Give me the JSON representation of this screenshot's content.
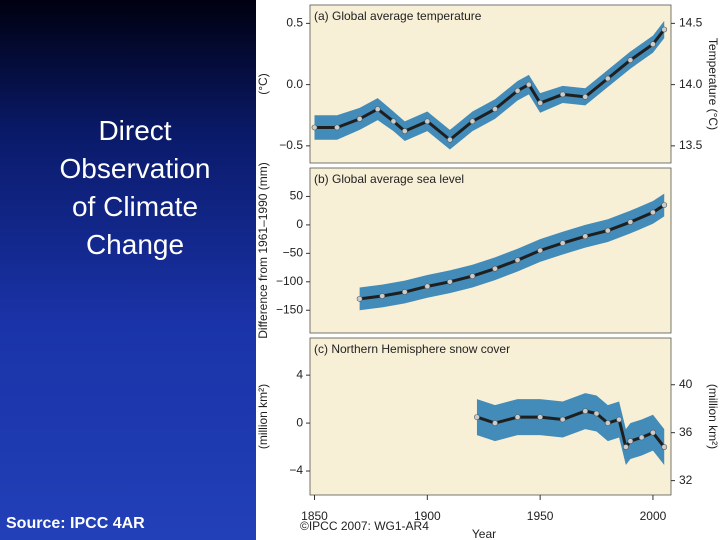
{
  "slide": {
    "title": "Direct Observation of Climate Change",
    "source": "Source: IPCC 4AR",
    "copyright": "©IPCC 2007: WG1-AR4"
  },
  "chart_data": [
    {
      "type": "line",
      "title": "(a) Global average temperature",
      "ylabel": "(°C)",
      "y2label": "Temperature (°C)",
      "x": [
        1850,
        1860,
        1870,
        1878,
        1885,
        1890,
        1900,
        1910,
        1920,
        1930,
        1940,
        1945,
        1950,
        1960,
        1970,
        1980,
        1990,
        2000,
        2005
      ],
      "values": [
        -0.35,
        -0.35,
        -0.28,
        -0.2,
        -0.3,
        -0.38,
        -0.3,
        -0.45,
        -0.3,
        -0.2,
        -0.05,
        0.0,
        -0.15,
        -0.08,
        -0.1,
        0.05,
        0.2,
        0.33,
        0.45
      ],
      "lower": [
        -0.45,
        -0.45,
        -0.37,
        -0.29,
        -0.38,
        -0.46,
        -0.38,
        -0.53,
        -0.38,
        -0.28,
        -0.13,
        -0.08,
        -0.23,
        -0.15,
        -0.17,
        -0.02,
        0.13,
        0.26,
        0.38
      ],
      "upper": [
        -0.25,
        -0.25,
        -0.19,
        -0.11,
        -0.22,
        -0.3,
        -0.22,
        -0.37,
        -0.22,
        -0.12,
        0.03,
        0.08,
        -0.07,
        -0.01,
        -0.03,
        0.12,
        0.27,
        0.4,
        0.52
      ],
      "color": "#1f1f1f",
      "band_color": "#2f7fb5",
      "xlim": [
        1848,
        2008
      ],
      "ylim": [
        -0.64,
        0.65
      ],
      "yticks": [
        {
          "value": 0.5,
          "label": "0.5"
        },
        {
          "value": 0,
          "label": "0.0"
        },
        {
          "value": -0.5,
          "label": "−0.5"
        }
      ],
      "y2lim": [
        13.36,
        14.65
      ],
      "y2ticks": [
        {
          "value": 14.5,
          "label": "14.5"
        },
        {
          "value": 14,
          "label": "14.0"
        },
        {
          "value": 13.5,
          "label": "13.5"
        }
      ]
    },
    {
      "type": "line",
      "title": "(b) Global average sea level",
      "ylabel": "Difference from 1961–1990 (mm)",
      "x": [
        1870,
        1880,
        1890,
        1900,
        1910,
        1920,
        1930,
        1940,
        1950,
        1960,
        1970,
        1980,
        1990,
        2000,
        2005
      ],
      "values": [
        -130,
        -125,
        -118,
        -108,
        -100,
        -90,
        -77,
        -62,
        -45,
        -32,
        -20,
        -10,
        5,
        22,
        35
      ],
      "lower": [
        -150,
        -145,
        -138,
        -128,
        -120,
        -110,
        -97,
        -82,
        -65,
        -52,
        -40,
        -30,
        -15,
        2,
        15
      ],
      "upper": [
        -110,
        -105,
        -98,
        -88,
        -80,
        -70,
        -57,
        -42,
        -25,
        -12,
        0,
        10,
        25,
        42,
        55
      ],
      "color": "#1f1f1f",
      "band_color": "#2f7fb5",
      "xlim": [
        1848,
        2008
      ],
      "ylim": [
        -190,
        100
      ],
      "yticks": [
        50,
        0,
        {
          "value": -50,
          "label": "−50"
        },
        {
          "value": -100,
          "label": "−100"
        },
        {
          "value": -150,
          "label": "−150"
        }
      ]
    },
    {
      "type": "line",
      "title": "(c) Northern Hemisphere snow cover",
      "ylabel": "(million km²)",
      "y2label": "(million km²)",
      "xlabel": "Year",
      "x": [
        1922,
        1930,
        1940,
        1950,
        1960,
        1970,
        1975,
        1980,
        1985,
        1988,
        1990,
        1995,
        2000,
        2005
      ],
      "values": [
        0.5,
        0,
        0.5,
        0.5,
        0.3,
        1,
        0.8,
        0,
        0.3,
        -2,
        -1.5,
        -1.2,
        -0.8,
        -2
      ],
      "lower": [
        -1,
        -1.5,
        -1,
        -1,
        -1.2,
        -0.5,
        -0.7,
        -1.5,
        -1.2,
        -3.5,
        -3,
        -2.7,
        -2.3,
        -3.5
      ],
      "upper": [
        2,
        1.5,
        2,
        2,
        1.8,
        2.5,
        2.3,
        1.5,
        1.8,
        -0.5,
        0,
        0.3,
        0.7,
        -0.5
      ],
      "color": "#1f1f1f",
      "band_color": "#2f7fb5",
      "xlim": [
        1848,
        2008
      ],
      "ylim": [
        -6,
        7.1
      ],
      "yticks": [
        4,
        0,
        {
          "value": -4,
          "label": "−4"
        }
      ],
      "y2lim": [
        30.8,
        43.9
      ],
      "y2ticks": [
        40,
        36,
        32
      ],
      "xticks": [
        1850,
        1900,
        1950,
        2000
      ]
    }
  ]
}
